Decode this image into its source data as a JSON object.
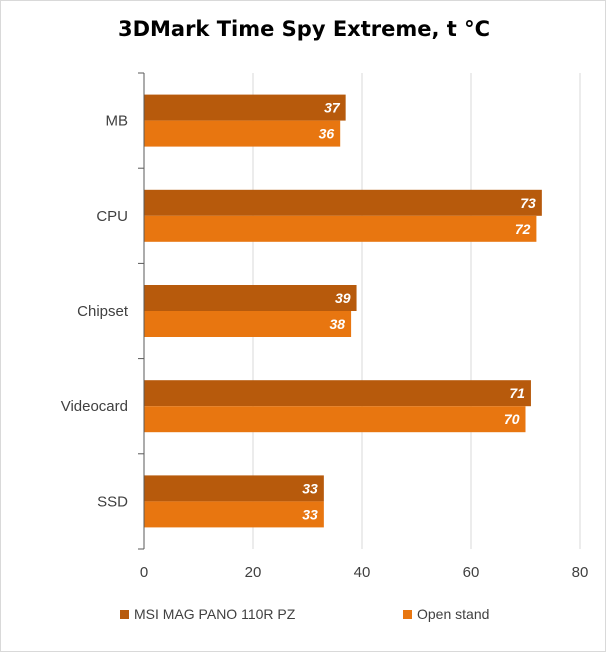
{
  "chart_data": {
    "type": "bar",
    "orientation": "horizontal",
    "title": "3DMark Time Spy Extreme, t °C",
    "categories": [
      "MB",
      "CPU",
      "Chipset",
      "Videocard",
      "SSD"
    ],
    "series": [
      {
        "name": "MSI MAG PANO 110R PZ",
        "values": [
          37,
          73,
          39,
          71,
          33
        ],
        "color": "#b75a0c"
      },
      {
        "name": "Open stand",
        "values": [
          36,
          72,
          38,
          70,
          33
        ],
        "color": "#e87610"
      }
    ],
    "xlim": [
      0,
      80
    ],
    "xticks": [
      0,
      20,
      40,
      60,
      80
    ],
    "grid": true,
    "legend_position": "bottom",
    "data_labels": true
  }
}
